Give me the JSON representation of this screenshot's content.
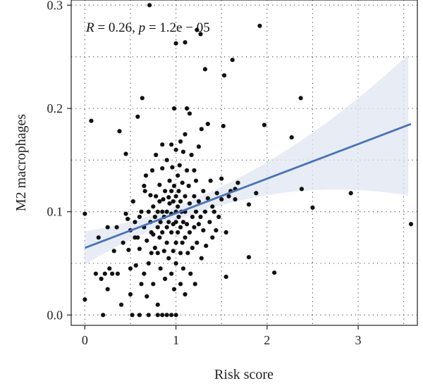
{
  "chart_data": {
    "type": "scatter",
    "xlabel": "Risk score",
    "ylabel": "M2 macrophages",
    "xlim": [
      -0.15,
      3.65
    ],
    "ylim": [
      -0.01,
      0.305
    ],
    "x_ticks": [
      0,
      1,
      2,
      3
    ],
    "x_tick_labels": [
      "0",
      "1",
      "2",
      "3"
    ],
    "y_ticks": [
      0.0,
      0.1,
      0.2,
      0.3
    ],
    "y_tick_labels": [
      "0.0",
      "0.1",
      "0.2",
      "0.3"
    ],
    "grid": "dotted",
    "annotation": {
      "r_symbol": "R",
      "r_text": " = 0.26, ",
      "p_symbol": "p",
      "p_text": " = 1.2e − 05"
    },
    "regression": {
      "intercept": 0.065,
      "slope": 0.0335,
      "x_range": [
        0,
        3.58
      ],
      "color": "#4a72b8",
      "band_color": "#dfe6f1"
    },
    "points_color": "#111111",
    "points": [
      [
        0.0,
        0.098
      ],
      [
        0.0,
        0.015
      ],
      [
        0.07,
        0.188
      ],
      [
        0.12,
        0.04
      ],
      [
        0.15,
        0.075
      ],
      [
        0.18,
        0.035
      ],
      [
        0.2,
        0.0
      ],
      [
        0.22,
        0.04
      ],
      [
        0.25,
        0.085
      ],
      [
        0.27,
        0.045
      ],
      [
        0.3,
        0.04
      ],
      [
        0.25,
        0.025
      ],
      [
        0.32,
        0.062
      ],
      [
        0.35,
        0.085
      ],
      [
        0.36,
        0.04
      ],
      [
        0.38,
        0.178
      ],
      [
        0.4,
        0.01
      ],
      [
        0.42,
        0.07
      ],
      [
        0.45,
        0.156
      ],
      [
        0.45,
        0.098
      ],
      [
        0.47,
        0.093
      ],
      [
        0.48,
        0.063
      ],
      [
        0.5,
        0.082
      ],
      [
        0.5,
        0.045
      ],
      [
        0.5,
        0.02
      ],
      [
        0.52,
        0.0
      ],
      [
        0.53,
        0.11
      ],
      [
        0.55,
        0.09
      ],
      [
        0.55,
        0.075
      ],
      [
        0.56,
        0.048
      ],
      [
        0.58,
        0.192
      ],
      [
        0.58,
        0.075
      ],
      [
        0.6,
        0.064
      ],
      [
        0.6,
        0.095
      ],
      [
        0.6,
        0.0
      ],
      [
        0.62,
        0.1
      ],
      [
        0.62,
        0.03
      ],
      [
        0.63,
        0.21
      ],
      [
        0.65,
        0.125
      ],
      [
        0.65,
        0.085
      ],
      [
        0.65,
        0.04
      ],
      [
        0.66,
        0.12
      ],
      [
        0.67,
        0.135
      ],
      [
        0.68,
        0.072
      ],
      [
        0.68,
        0.018
      ],
      [
        0.7,
        0.1
      ],
      [
        0.7,
        0.05
      ],
      [
        0.7,
        0.0
      ],
      [
        0.71,
        0.3
      ],
      [
        0.72,
        0.09
      ],
      [
        0.72,
        0.116
      ],
      [
        0.73,
        0.08
      ],
      [
        0.73,
        0.06
      ],
      [
        0.74,
        0.14
      ],
      [
        0.75,
        0.105
      ],
      [
        0.75,
        0.078
      ],
      [
        0.75,
        0.03
      ],
      [
        0.77,
        0.095
      ],
      [
        0.77,
        0.065
      ],
      [
        0.78,
        0.115
      ],
      [
        0.78,
        0.155
      ],
      [
        0.8,
        0.1
      ],
      [
        0.8,
        0.085
      ],
      [
        0.8,
        0.06
      ],
      [
        0.8,
        0.01
      ],
      [
        0.8,
        0.0
      ],
      [
        0.82,
        0.11
      ],
      [
        0.82,
        0.126
      ],
      [
        0.82,
        0.075
      ],
      [
        0.83,
        0.09
      ],
      [
        0.83,
        0.045
      ],
      [
        0.85,
        0.165
      ],
      [
        0.85,
        0.142
      ],
      [
        0.85,
        0.1
      ],
      [
        0.85,
        0.08
      ],
      [
        0.85,
        0.0
      ],
      [
        0.86,
        0.112
      ],
      [
        0.87,
        0.095
      ],
      [
        0.87,
        0.062
      ],
      [
        0.88,
        0.12
      ],
      [
        0.88,
        0.035
      ],
      [
        0.9,
        0.15
      ],
      [
        0.9,
        0.1
      ],
      [
        0.9,
        0.085
      ],
      [
        0.9,
        0.07
      ],
      [
        0.9,
        0.0
      ],
      [
        0.92,
        0.114
      ],
      [
        0.92,
        0.09
      ],
      [
        0.92,
        0.055
      ],
      [
        0.93,
        0.13
      ],
      [
        0.93,
        0.108
      ],
      [
        0.95,
        0.165
      ],
      [
        0.95,
        0.12
      ],
      [
        0.95,
        0.098
      ],
      [
        0.95,
        0.08
      ],
      [
        0.95,
        0.04
      ],
      [
        0.95,
        0.0
      ],
      [
        0.96,
        0.143
      ],
      [
        0.97,
        0.11
      ],
      [
        0.97,
        0.088
      ],
      [
        0.97,
        0.062
      ],
      [
        0.98,
        0.2
      ],
      [
        0.98,
        0.125
      ],
      [
        0.98,
        0.025
      ],
      [
        1.0,
        0.263
      ],
      [
        1.0,
        0.16
      ],
      [
        1.0,
        0.115
      ],
      [
        1.0,
        0.1
      ],
      [
        1.0,
        0.09
      ],
      [
        1.0,
        0.07
      ],
      [
        1.0,
        0.05
      ],
      [
        1.0,
        0.0
      ],
      [
        1.02,
        0.135
      ],
      [
        1.02,
        0.105
      ],
      [
        1.02,
        0.08
      ],
      [
        1.03,
        0.12
      ],
      [
        1.03,
        0.095
      ],
      [
        1.04,
        0.145
      ],
      [
        1.05,
        0.168
      ],
      [
        1.05,
        0.11
      ],
      [
        1.05,
        0.085
      ],
      [
        1.05,
        0.06
      ],
      [
        1.05,
        0.03
      ],
      [
        1.06,
        0.1
      ],
      [
        1.07,
        0.128
      ],
      [
        1.07,
        0.07
      ],
      [
        1.08,
        0.158
      ],
      [
        1.08,
        0.09
      ],
      [
        1.08,
        0.045
      ],
      [
        1.1,
        0.264
      ],
      [
        1.1,
        0.175
      ],
      [
        1.1,
        0.115
      ],
      [
        1.1,
        0.1
      ],
      [
        1.1,
        0.075
      ],
      [
        1.1,
        0.02
      ],
      [
        1.12,
        0.2
      ],
      [
        1.12,
        0.14
      ],
      [
        1.12,
        0.088
      ],
      [
        1.13,
        0.06
      ],
      [
        1.14,
        0.125
      ],
      [
        1.15,
        0.195
      ],
      [
        1.15,
        0.108
      ],
      [
        1.15,
        0.08
      ],
      [
        1.16,
        0.04
      ],
      [
        1.17,
        0.155
      ],
      [
        1.18,
        0.095
      ],
      [
        1.18,
        0.065
      ],
      [
        1.2,
        0.14
      ],
      [
        1.2,
        0.115
      ],
      [
        1.2,
        0.085
      ],
      [
        1.21,
        0.03
      ],
      [
        1.22,
        0.13
      ],
      [
        1.22,
        0.1
      ],
      [
        1.23,
        0.276
      ],
      [
        1.23,
        0.07
      ],
      [
        1.25,
        0.163
      ],
      [
        1.25,
        0.11
      ],
      [
        1.25,
        0.088
      ],
      [
        1.27,
        0.272
      ],
      [
        1.27,
        0.095
      ],
      [
        1.28,
        0.18
      ],
      [
        1.28,
        0.055
      ],
      [
        1.3,
        0.12
      ],
      [
        1.3,
        0.082
      ],
      [
        1.32,
        0.238
      ],
      [
        1.32,
        0.1
      ],
      [
        1.33,
        0.067
      ],
      [
        1.35,
        0.185
      ],
      [
        1.35,
        0.113
      ],
      [
        1.37,
        0.09
      ],
      [
        1.38,
        0.13
      ],
      [
        1.4,
        0.105
      ],
      [
        1.4,
        0.075
      ],
      [
        1.42,
        0.1
      ],
      [
        1.44,
        0.082
      ],
      [
        1.45,
        0.118
      ],
      [
        1.47,
        0.095
      ],
      [
        1.5,
        0.132
      ],
      [
        1.5,
        0.112
      ],
      [
        1.52,
        0.183
      ],
      [
        1.53,
        0.232
      ],
      [
        1.55,
        0.037
      ],
      [
        1.55,
        0.08
      ],
      [
        1.58,
        0.115
      ],
      [
        1.6,
        0.12
      ],
      [
        1.62,
        0.247
      ],
      [
        1.65,
        0.122
      ],
      [
        1.65,
        0.112
      ],
      [
        1.68,
        0.128
      ],
      [
        1.8,
        0.107
      ],
      [
        1.8,
        0.056
      ],
      [
        1.88,
        0.118
      ],
      [
        1.92,
        0.28
      ],
      [
        1.97,
        0.184
      ],
      [
        2.08,
        0.041
      ],
      [
        2.27,
        0.172
      ],
      [
        2.37,
        0.21
      ],
      [
        2.38,
        0.122
      ],
      [
        2.5,
        0.104
      ],
      [
        2.92,
        0.118
      ],
      [
        3.58,
        0.088
      ]
    ]
  }
}
